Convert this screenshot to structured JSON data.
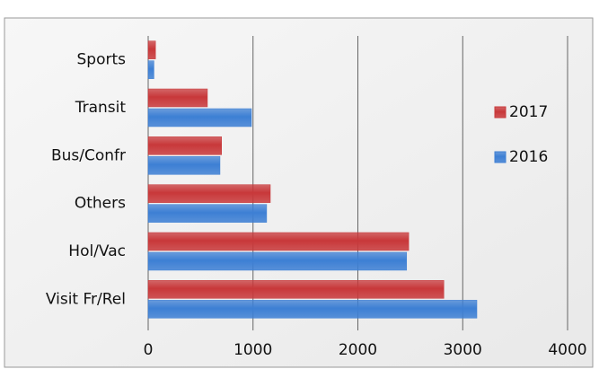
{
  "chart_data": {
    "type": "hbar",
    "categories": [
      "Sports",
      "Transit",
      "Bus/Confr",
      "Others",
      "Hol/Vac",
      "Visit Fr/Rel"
    ],
    "series": [
      {
        "name": "2017",
        "color": "#c8383a",
        "values": [
          70,
          565,
          700,
          1165,
          2485,
          2820
        ]
      },
      {
        "name": "2016",
        "color": "#3d7fd4",
        "values": [
          55,
          985,
          685,
          1130,
          2465,
          3135
        ]
      }
    ],
    "xlim": [
      0,
      4000
    ],
    "xticks": [
      0,
      1000,
      2000,
      3000,
      4000
    ],
    "grid": true,
    "legend": "right"
  }
}
